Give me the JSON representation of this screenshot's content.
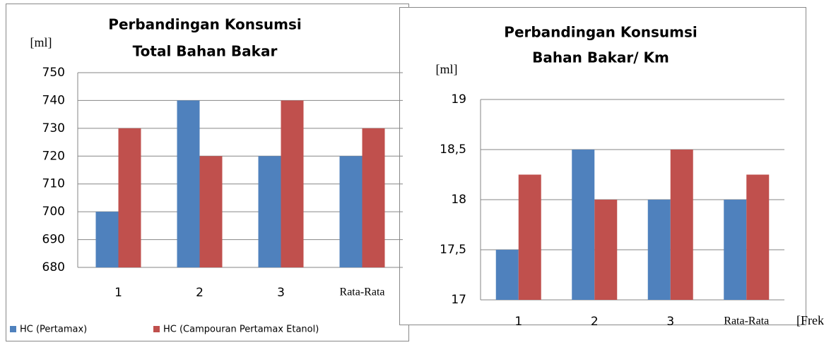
{
  "chart_data": [
    {
      "type": "bar",
      "title_lines": [
        "Perbandingan Konsumsi",
        "Total Bahan Bakar"
      ],
      "y_label": "[ml]",
      "categories": [
        "1",
        "2",
        "3",
        "Rata-Rata"
      ],
      "series": [
        {
          "name": "HC (Pertamax)",
          "color": "#4f81bd",
          "values": [
            700,
            740,
            720,
            720
          ]
        },
        {
          "name": "HC (Campouran Pertamax Etanol)",
          "color": "#c0504d",
          "values": [
            730,
            720,
            740,
            730
          ]
        }
      ],
      "ylim": [
        680,
        750
      ],
      "yticks": [
        680,
        690,
        700,
        710,
        720,
        730,
        740,
        750
      ],
      "grid": true,
      "legend": "bottom"
    },
    {
      "type": "bar",
      "title_lines": [
        "Perbandingan Konsumsi",
        "Bahan Bakar/ Km"
      ],
      "y_label": "[ml]",
      "x_label": "[Frek",
      "categories": [
        "1",
        "2",
        "3",
        "Rata-Rata"
      ],
      "series": [
        {
          "name": "HC (Pertamax)",
          "color": "#4f81bd",
          "values": [
            17.5,
            18.5,
            18,
            18
          ]
        },
        {
          "name": "HC (Campouran Pertamax Etanol)",
          "color": "#c0504d",
          "values": [
            18.25,
            18,
            18.5,
            18.25
          ]
        }
      ],
      "ylim": [
        17,
        19
      ],
      "yticks": [
        17,
        {
          "value": 17.5,
          "label": "17,5"
        },
        18,
        {
          "value": 18.5,
          "label": "18,5"
        },
        19
      ],
      "grid": true
    }
  ]
}
